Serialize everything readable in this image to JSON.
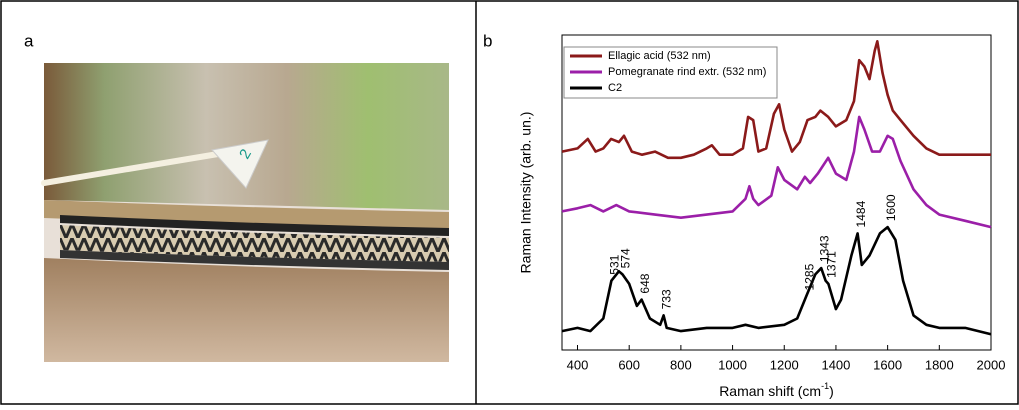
{
  "panel_labels": [
    "a",
    "b"
  ],
  "photo_tag": "2",
  "chart_data": {
    "type": "line",
    "xlabel": [
      "Raman shift (cm",
      "-1",
      ")"
    ],
    "ylabel": "Raman Intensity (arb. un.)",
    "xlim": [
      340,
      2000
    ],
    "ylim": [
      0,
      100
    ],
    "xticks": [
      400,
      600,
      800,
      1000,
      1200,
      1400,
      1600,
      1800,
      2000
    ],
    "legend": "upper left",
    "series": [
      {
        "name": "Ellagic acid (532 nm)",
        "color": "#8b1a1a",
        "x": [
          340,
          400,
          440,
          470,
          500,
          530,
          560,
          580,
          610,
          650,
          700,
          750,
          800,
          850,
          900,
          920,
          950,
          1000,
          1040,
          1060,
          1080,
          1100,
          1130,
          1160,
          1180,
          1200,
          1230,
          1260,
          1290,
          1320,
          1340,
          1370,
          1400,
          1440,
          1470,
          1490,
          1510,
          1530,
          1550,
          1560,
          1580,
          1600,
          1620,
          1650,
          1700,
          1750,
          1800,
          1900,
          2000
        ],
        "values": [
          63,
          64,
          67,
          63,
          64,
          67,
          66,
          68,
          63,
          62,
          63,
          61,
          61,
          62,
          64,
          65,
          62,
          62,
          64,
          74,
          73,
          63,
          64,
          75,
          78,
          70,
          63,
          66,
          73,
          74,
          76,
          74,
          71,
          73,
          79,
          92,
          90,
          86,
          95,
          98,
          88,
          81,
          76,
          73,
          68,
          64,
          62,
          62,
          62
        ]
      },
      {
        "name": "Pomegranate rind extr. (532 nm)",
        "color": "#9b1fa8",
        "x": [
          340,
          400,
          450,
          500,
          550,
          600,
          700,
          800,
          900,
          1000,
          1050,
          1065,
          1080,
          1100,
          1150,
          1175,
          1200,
          1250,
          1280,
          1300,
          1330,
          1370,
          1400,
          1440,
          1470,
          1490,
          1510,
          1540,
          1570,
          1600,
          1620,
          1650,
          1700,
          1750,
          1800,
          1900,
          2000
        ],
        "values": [
          44,
          45,
          46,
          44,
          46,
          44,
          43,
          42,
          43,
          44,
          48,
          52,
          48,
          46,
          49,
          58,
          54,
          51,
          55,
          53,
          56,
          61,
          56,
          54,
          63,
          74,
          70,
          63,
          63,
          68,
          67,
          60,
          51,
          46,
          43,
          41,
          39
        ]
      },
      {
        "name": "C2",
        "color": "#000000",
        "x": [
          340,
          400,
          450,
          500,
          531,
          560,
          574,
          600,
          630,
          648,
          680,
          720,
          733,
          745,
          800,
          900,
          1000,
          1050,
          1100,
          1200,
          1250,
          1285,
          1320,
          1343,
          1360,
          1371,
          1400,
          1420,
          1460,
          1484,
          1500,
          1530,
          1570,
          1600,
          1630,
          1660,
          1700,
          1750,
          1800,
          1900,
          2000
        ],
        "values": [
          6,
          7,
          6,
          10,
          22,
          25,
          24,
          21,
          14,
          16,
          10,
          8,
          11,
          7,
          6,
          7,
          7,
          8,
          7,
          8,
          10,
          17,
          24,
          26,
          22,
          21,
          13,
          16,
          30,
          37,
          27,
          30,
          37,
          39,
          35,
          22,
          11,
          8,
          7,
          7,
          5
        ]
      }
    ],
    "peak_labels": [
      531,
      574,
      648,
      733,
      1285,
      1343,
      1371,
      1484,
      1600
    ]
  }
}
